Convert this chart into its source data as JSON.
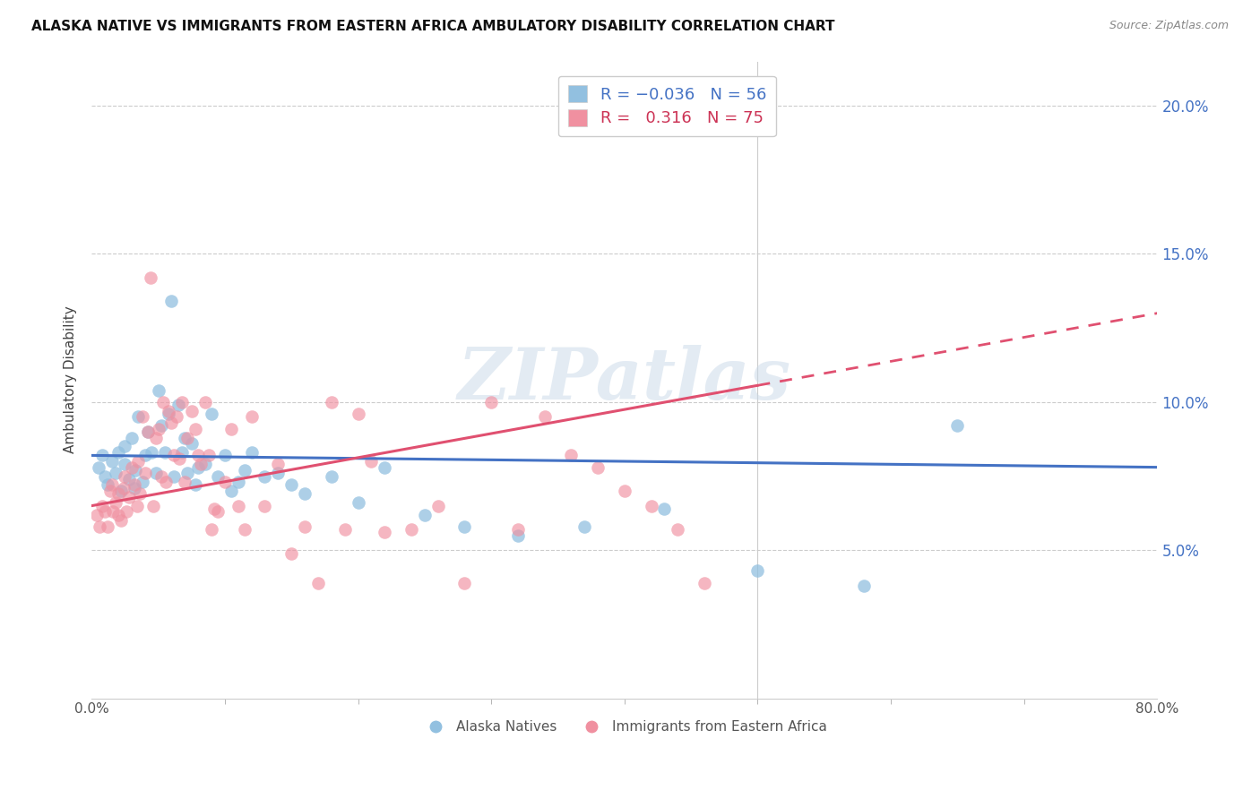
{
  "title": "ALASKA NATIVE VS IMMIGRANTS FROM EASTERN AFRICA AMBULATORY DISABILITY CORRELATION CHART",
  "source": "Source: ZipAtlas.com",
  "ylabel": "Ambulatory Disability",
  "ytick_values": [
    0.05,
    0.1,
    0.15,
    0.2
  ],
  "xlim": [
    0.0,
    0.8
  ],
  "ylim": [
    0.0,
    0.215
  ],
  "legend_label1": "Alaska Natives",
  "legend_label2": "Immigrants from Eastern Africa",
  "color_blue": "#92c0e0",
  "color_pink": "#f090a0",
  "watermark": "ZIPatlas",
  "R_blue": -0.036,
  "N_blue": 56,
  "R_pink": 0.316,
  "N_pink": 75,
  "blue_scatter_x": [
    0.005,
    0.008,
    0.01,
    0.012,
    0.015,
    0.018,
    0.02,
    0.022,
    0.025,
    0.025,
    0.028,
    0.03,
    0.032,
    0.033,
    0.035,
    0.038,
    0.04,
    0.042,
    0.045,
    0.048,
    0.05,
    0.052,
    0.055,
    0.058,
    0.06,
    0.062,
    0.065,
    0.068,
    0.07,
    0.072,
    0.075,
    0.078,
    0.08,
    0.085,
    0.09,
    0.095,
    0.1,
    0.105,
    0.11,
    0.115,
    0.12,
    0.13,
    0.14,
    0.15,
    0.16,
    0.18,
    0.2,
    0.22,
    0.25,
    0.28,
    0.32,
    0.37,
    0.43,
    0.5,
    0.58,
    0.65
  ],
  "blue_scatter_y": [
    0.078,
    0.082,
    0.075,
    0.072,
    0.08,
    0.076,
    0.083,
    0.07,
    0.085,
    0.079,
    0.074,
    0.088,
    0.071,
    0.077,
    0.095,
    0.073,
    0.082,
    0.09,
    0.083,
    0.076,
    0.104,
    0.092,
    0.083,
    0.096,
    0.134,
    0.075,
    0.099,
    0.083,
    0.088,
    0.076,
    0.086,
    0.072,
    0.078,
    0.079,
    0.096,
    0.075,
    0.082,
    0.07,
    0.073,
    0.077,
    0.083,
    0.075,
    0.076,
    0.072,
    0.069,
    0.075,
    0.066,
    0.078,
    0.062,
    0.058,
    0.055,
    0.058,
    0.064,
    0.043,
    0.038,
    0.092
  ],
  "pink_scatter_x": [
    0.004,
    0.006,
    0.008,
    0.01,
    0.012,
    0.014,
    0.015,
    0.016,
    0.018,
    0.02,
    0.02,
    0.022,
    0.024,
    0.025,
    0.026,
    0.028,
    0.03,
    0.032,
    0.034,
    0.035,
    0.036,
    0.038,
    0.04,
    0.042,
    0.044,
    0.046,
    0.048,
    0.05,
    0.052,
    0.054,
    0.056,
    0.058,
    0.06,
    0.062,
    0.064,
    0.066,
    0.068,
    0.07,
    0.072,
    0.075,
    0.078,
    0.08,
    0.082,
    0.085,
    0.088,
    0.09,
    0.092,
    0.095,
    0.1,
    0.105,
    0.11,
    0.115,
    0.12,
    0.13,
    0.14,
    0.15,
    0.16,
    0.17,
    0.18,
    0.19,
    0.2,
    0.21,
    0.22,
    0.24,
    0.26,
    0.28,
    0.3,
    0.32,
    0.34,
    0.36,
    0.38,
    0.4,
    0.42,
    0.44,
    0.46
  ],
  "pink_scatter_y": [
    0.062,
    0.058,
    0.065,
    0.063,
    0.058,
    0.07,
    0.072,
    0.063,
    0.066,
    0.062,
    0.069,
    0.06,
    0.071,
    0.075,
    0.063,
    0.068,
    0.078,
    0.072,
    0.065,
    0.08,
    0.069,
    0.095,
    0.076,
    0.09,
    0.142,
    0.065,
    0.088,
    0.091,
    0.075,
    0.1,
    0.073,
    0.097,
    0.093,
    0.082,
    0.095,
    0.081,
    0.1,
    0.073,
    0.088,
    0.097,
    0.091,
    0.082,
    0.079,
    0.1,
    0.082,
    0.057,
    0.064,
    0.063,
    0.073,
    0.091,
    0.065,
    0.057,
    0.095,
    0.065,
    0.079,
    0.049,
    0.058,
    0.039,
    0.1,
    0.057,
    0.096,
    0.08,
    0.056,
    0.057,
    0.065,
    0.039,
    0.1,
    0.057,
    0.095,
    0.082,
    0.078,
    0.07,
    0.065,
    0.057,
    0.039
  ]
}
